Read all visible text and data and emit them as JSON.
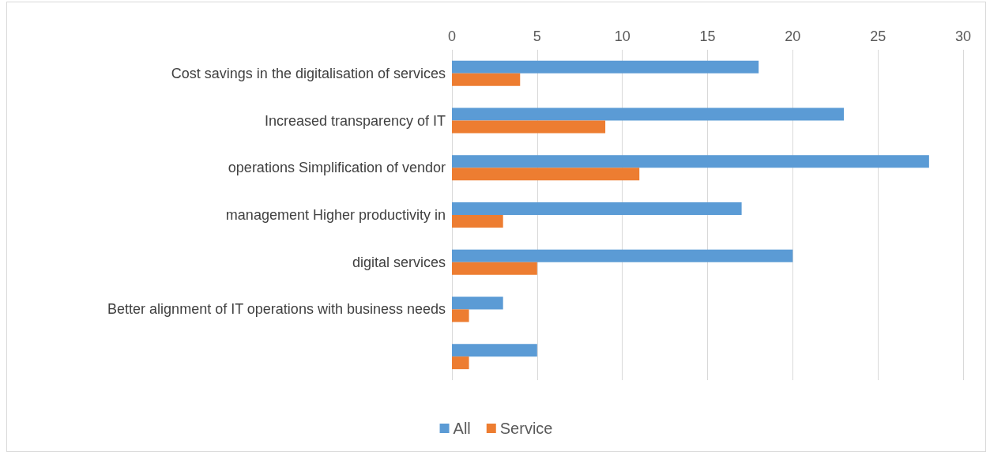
{
  "chart_data": {
    "type": "bar",
    "orientation": "horizontal",
    "categories": [
      "Cost savings in the digitalisation of services",
      "Increased transparency of IT",
      "operations Simplification of vendor",
      "management Higher productivity in",
      "digital services",
      "Better alignment of IT operations with business needs",
      null
    ],
    "series": [
      {
        "name": "All",
        "color": "#5b9bd5",
        "values": [
          18,
          23,
          28,
          17,
          20,
          3,
          5
        ]
      },
      {
        "name": "Service",
        "color": "#ed7d31",
        "values": [
          4,
          9,
          11,
          3,
          5,
          1,
          1
        ]
      }
    ],
    "xlim": [
      0,
      30
    ],
    "xticks": [
      0,
      5,
      10,
      15,
      20,
      25,
      30
    ],
    "grid": "x",
    "legend": "bottom"
  }
}
